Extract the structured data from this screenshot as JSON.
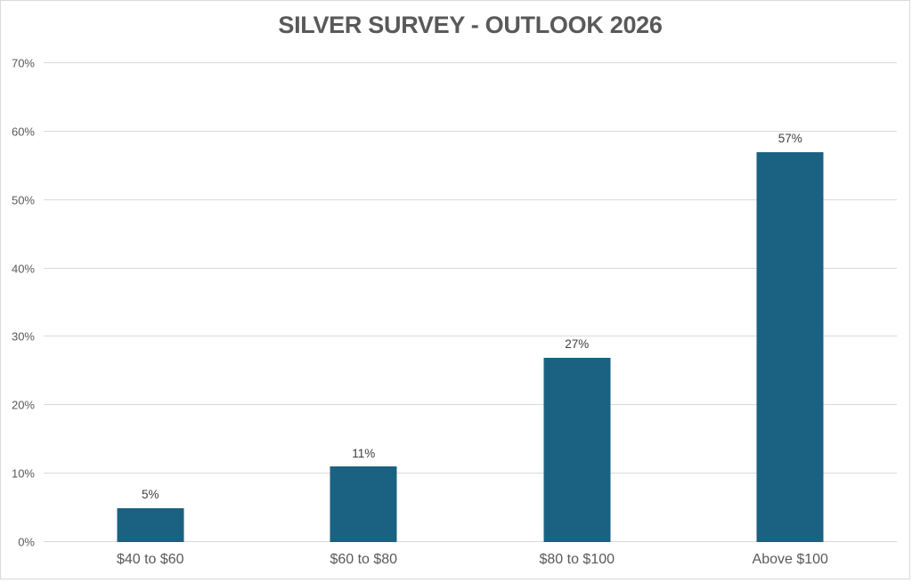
{
  "page": {
    "background": "#ffffff",
    "frame_border_color": "#d9d9d9"
  },
  "chart_data": {
    "type": "bar",
    "title": "SILVER SURVEY - OUTLOOK 2026",
    "categories": [
      "$40 to $60",
      "$60 to $80",
      "$80 to $100",
      "Above $100"
    ],
    "values": [
      5,
      11,
      27,
      57
    ],
    "data_labels": [
      "5%",
      "11%",
      "27%",
      "57%"
    ],
    "xlabel": "",
    "ylabel": "",
    "ylim": [
      0,
      70
    ],
    "y_tick_step": 10,
    "y_tick_labels": [
      "0%",
      "10%",
      "20%",
      "30%",
      "40%",
      "50%",
      "60%",
      "70%"
    ],
    "grid": "horizontal",
    "legend": "none",
    "colors": {
      "bar": "#1b6182",
      "gridline": "#d9d9d9",
      "axis_line": "#d9d9d9",
      "title_text": "#595959",
      "tick_text": "#595959",
      "data_label_text": "#404040"
    }
  }
}
